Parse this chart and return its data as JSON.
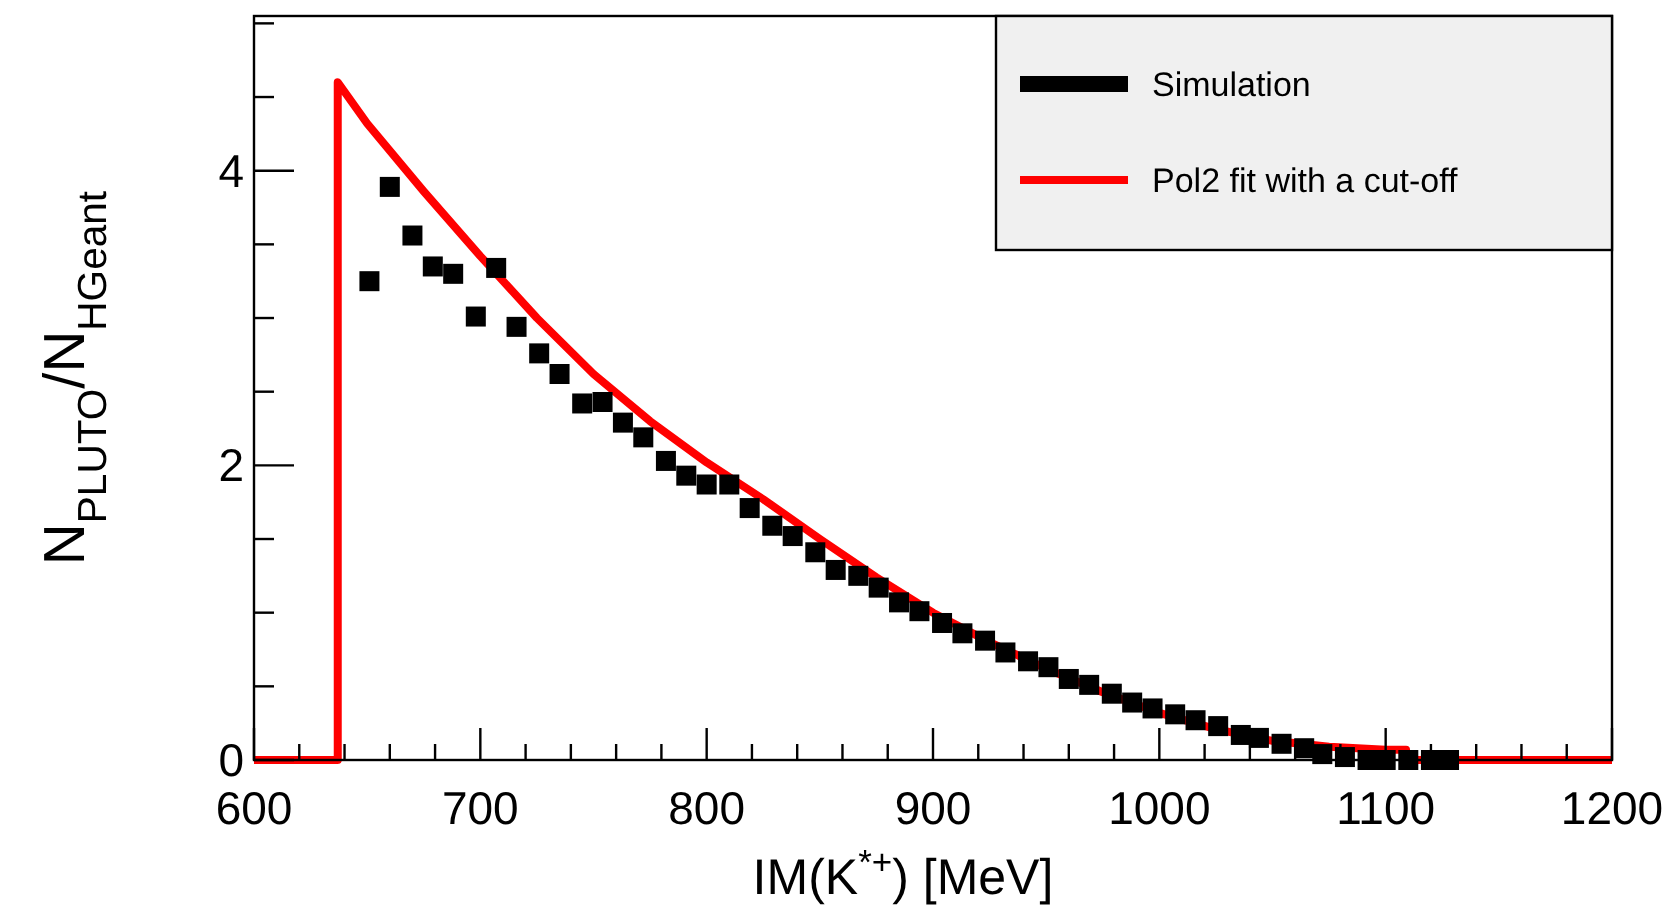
{
  "chart_data": {
    "type": "scatter",
    "xlabel": "IM(K$^{*+}$) [MeV]",
    "ylabel": "N$_{PLUTO}$/N$_{HGeant}$",
    "xlim": [
      600,
      1200
    ],
    "ylim": [
      0,
      5.05
    ],
    "xticks": [
      600,
      {
        "value": 620,
        "label": null
      },
      {
        "value": 640,
        "label": null
      },
      {
        "value": 660,
        "label": null
      },
      {
        "value": 680,
        "label": null
      },
      700,
      {
        "value": 720,
        "label": null
      },
      {
        "value": 740,
        "label": null
      },
      {
        "value": 760,
        "label": null
      },
      {
        "value": 780,
        "label": null
      },
      800,
      {
        "value": 820,
        "label": null
      },
      {
        "value": 840,
        "label": null
      },
      {
        "value": 860,
        "label": null
      },
      {
        "value": 880,
        "label": null
      },
      900,
      {
        "value": 920,
        "label": null
      },
      {
        "value": 940,
        "label": null
      },
      {
        "value": 960,
        "label": null
      },
      {
        "value": 980,
        "label": null
      },
      1000,
      {
        "value": 1020,
        "label": null
      },
      {
        "value": 1040,
        "label": null
      },
      {
        "value": 1060,
        "label": null
      },
      {
        "value": 1080,
        "label": null
      },
      1100,
      {
        "value": 1120,
        "label": null
      },
      {
        "value": 1140,
        "label": null
      },
      {
        "value": 1160,
        "label": null
      },
      {
        "value": 1180,
        "label": null
      },
      1200
    ],
    "yticks": [
      0,
      {
        "value": 0.5,
        "label": null
      },
      {
        "value": 1,
        "label": null
      },
      {
        "value": 1.5,
        "label": null
      },
      2,
      {
        "value": 2.5,
        "label": null
      },
      {
        "value": 3,
        "label": null
      },
      {
        "value": 3.5,
        "label": null
      },
      4,
      {
        "value": 4.5,
        "label": null
      },
      {
        "value": 5,
        "label": null
      }
    ],
    "grid": false,
    "legend": "top right",
    "series": [
      {
        "name": "Simulation",
        "marker": "square",
        "color": "#000000",
        "x": [
          651,
          660,
          670,
          679,
          688,
          698,
          707,
          716,
          726,
          735,
          745,
          754,
          763,
          772,
          782,
          791,
          800,
          810,
          819,
          829,
          838,
          848,
          857,
          867,
          876,
          885,
          894,
          904,
          913,
          923,
          932,
          942,
          951,
          960,
          969,
          979,
          988,
          997,
          1007,
          1016,
          1026,
          1036,
          1044,
          1054,
          1064,
          1072,
          1082,
          1092,
          1100,
          1110,
          1120,
          1128
        ],
        "values": [
          3.25,
          3.89,
          3.56,
          3.35,
          3.3,
          3.01,
          3.34,
          2.94,
          2.76,
          2.62,
          2.42,
          2.43,
          2.29,
          2.19,
          2.03,
          1.93,
          1.87,
          1.87,
          1.71,
          1.59,
          1.52,
          1.41,
          1.29,
          1.25,
          1.17,
          1.07,
          1.01,
          0.93,
          0.86,
          0.81,
          0.73,
          0.67,
          0.63,
          0.55,
          0.51,
          0.45,
          0.39,
          0.35,
          0.31,
          0.27,
          0.23,
          0.17,
          0.15,
          0.11,
          0.08,
          0.04,
          0.02,
          0,
          0,
          0,
          0,
          0
        ]
      },
      {
        "name": "Pol2 fit with a cut-off",
        "type": "line",
        "marker": "none",
        "line_style": "solid",
        "color": "#ff0000",
        "x": [
          600,
          637,
          637,
          650,
          675,
          700,
          725,
          750,
          775,
          800,
          825,
          850,
          875,
          900,
          925,
          950,
          975,
          1000,
          1025,
          1050,
          1075,
          1100,
          1109,
          1109,
          1200
        ],
        "values": [
          0,
          0,
          4.6,
          4.32,
          3.86,
          3.42,
          3.0,
          2.62,
          2.3,
          2.02,
          1.77,
          1.5,
          1.24,
          1.0,
          0.8,
          0.62,
          0.46,
          0.32,
          0.21,
          0.13,
          0.09,
          0.07,
          0.07,
          0,
          0
        ]
      }
    ]
  }
}
